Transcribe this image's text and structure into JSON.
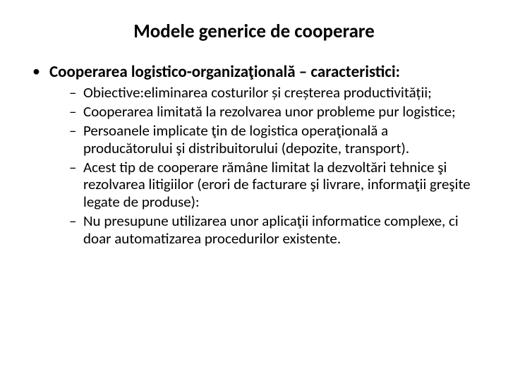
{
  "title": "Modele generice de cooperare",
  "bullet1": "Cooperarea logistico-organizaţională – caracteristici:",
  "sub1": "Obiective:eliminarea costurilor și creșterea productivității;",
  "sub2": " Cooperarea limitată la rezolvarea unor probleme pur logistice;",
  "sub3": "Persoanele implicate ţin de logistica operaţională a producătorului şi distribuitorului (depozite, transport).",
  "sub4": "Acest tip de cooperare rămâne limitat la dezvoltări tehnice şi rezolvarea litigiilor (erori de facturare şi livrare, informaţii greşite legate de produse):",
  "sub5": "Nu presupune utilizarea unor aplicaţii informatice complexe, ci doar automatizarea procedurilor existente."
}
